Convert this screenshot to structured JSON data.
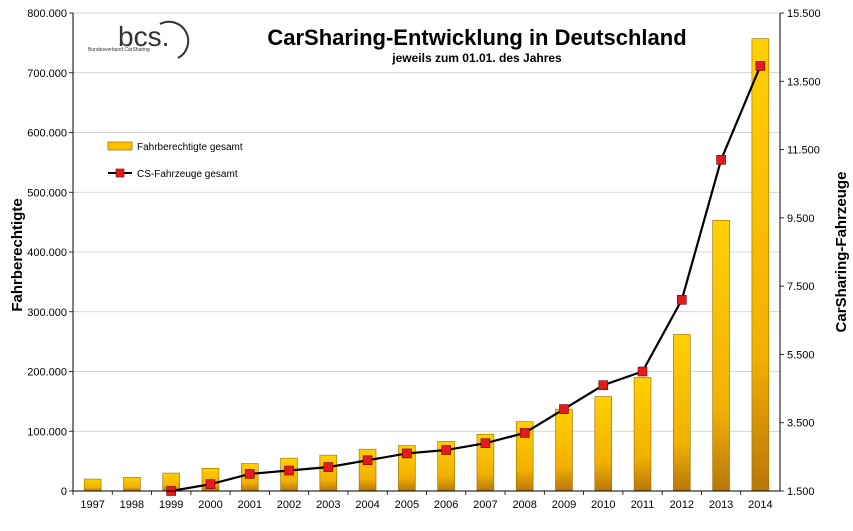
{
  "chart_data": {
    "type": "bar",
    "title": "CarSharing-Entwicklung in Deutschland",
    "subtitle": "jeweils zum 01.01. des Jahres",
    "logo": {
      "name": "bcs.",
      "subtitle": "Bundesverband CarSharing"
    },
    "categories": [
      "1997",
      "1998",
      "1999",
      "2000",
      "2001",
      "2002",
      "2003",
      "2004",
      "2005",
      "2006",
      "2007",
      "2008",
      "2009",
      "2010",
      "2011",
      "2012",
      "2013",
      "2014"
    ],
    "y_left": {
      "label": "Fahrberechtigte",
      "ylim": [
        0,
        800000
      ],
      "ticks": [
        0,
        100000,
        200000,
        300000,
        400000,
        500000,
        600000,
        700000,
        800000
      ],
      "tick_labels": [
        "0",
        "100.000",
        "200.000",
        "300.000",
        "400.000",
        "500.000",
        "600.000",
        "700.000",
        "800.000"
      ]
    },
    "y_right": {
      "label": "CarSharing-Fahrzeuge",
      "ylim": [
        1500,
        15500
      ],
      "ticks": [
        1500,
        3500,
        5500,
        7500,
        9500,
        11500,
        13500,
        15500
      ],
      "tick_labels": [
        "1.500",
        "3.500",
        "5.500",
        "7.500",
        "9.500",
        "11.500",
        "13.500",
        "15.500"
      ]
    },
    "series": [
      {
        "name": "Fahrberechtigte gesamt",
        "type": "bar",
        "axis": "left",
        "color": "#FFC000",
        "values": [
          20000,
          23000,
          30000,
          38000,
          46000,
          55000,
          60000,
          70000,
          76000,
          83000,
          95000,
          116000,
          137000,
          158000,
          190000,
          262000,
          453000,
          757000
        ]
      },
      {
        "name": "CS-Fahrzeuge gesamt",
        "type": "line",
        "axis": "right",
        "color": "#E41A1C",
        "line_color": "#000000",
        "values": [
          null,
          null,
          1500,
          1700,
          2000,
          2100,
          2200,
          2400,
          2600,
          2700,
          2900,
          3200,
          3900,
          4600,
          5000,
          7100,
          11200,
          13950
        ]
      }
    ],
    "legend_position": "upper-left",
    "grid": true
  }
}
